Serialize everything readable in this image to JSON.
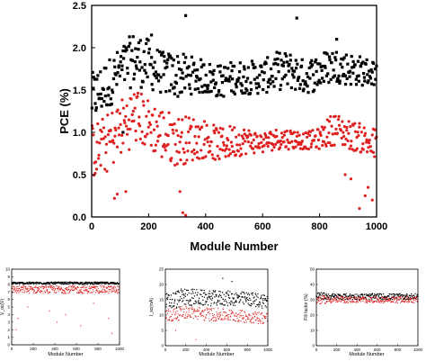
{
  "colors": {
    "series_black": "#000000",
    "series_red": "#e02020"
  },
  "chart_data": [
    {
      "id": "main",
      "type": "scatter",
      "xlabel": "Module Number",
      "ylabel": "PCE (%)",
      "xlim": [
        0,
        1000
      ],
      "ylim": [
        0.0,
        2.5
      ],
      "xticks": [
        "0",
        "200",
        "400",
        "600",
        "800",
        "1000"
      ],
      "yticks": [
        "0.0",
        "0.5",
        "1.0",
        "1.5",
        "2.0",
        "2.5"
      ],
      "grid": false,
      "series": [
        {
          "marker": "square",
          "color": "#000000",
          "profile_x": [
            0,
            50,
            100,
            150,
            200,
            250,
            300,
            350,
            400,
            450,
            500,
            550,
            600,
            650,
            700,
            750,
            800,
            850,
            900,
            950,
            1000
          ],
          "profile_hi": [
            1.7,
            1.85,
            2.0,
            2.2,
            2.1,
            1.95,
            1.95,
            1.9,
            1.85,
            1.8,
            1.85,
            1.85,
            1.85,
            1.95,
            1.95,
            1.85,
            1.95,
            2.0,
            1.95,
            1.9,
            1.85
          ],
          "profile_lo": [
            1.1,
            1.25,
            1.45,
            1.55,
            1.5,
            1.45,
            1.4,
            1.45,
            1.45,
            1.4,
            1.45,
            1.45,
            1.45,
            1.5,
            1.5,
            1.45,
            1.5,
            1.6,
            1.55,
            1.55,
            1.55
          ],
          "outliers": [
            [
              330,
              2.38
            ],
            [
              720,
              2.35
            ],
            [
              110,
              1.0
            ],
            [
              210,
              2.15
            ],
            [
              860,
              2.1
            ]
          ]
        },
        {
          "marker": "circle",
          "color": "#e02020",
          "profile_x": [
            0,
            50,
            100,
            150,
            200,
            250,
            300,
            350,
            400,
            450,
            500,
            550,
            600,
            650,
            700,
            750,
            800,
            850,
            900,
            950,
            1000
          ],
          "profile_hi": [
            1.1,
            1.2,
            1.4,
            1.55,
            1.4,
            1.3,
            1.2,
            1.2,
            1.15,
            1.05,
            1.1,
            1.05,
            1.0,
            1.05,
            1.05,
            1.0,
            1.05,
            1.25,
            1.15,
            1.1,
            1.05
          ],
          "profile_lo": [
            0.45,
            0.5,
            0.7,
            0.85,
            0.8,
            0.65,
            0.6,
            0.65,
            0.7,
            0.65,
            0.7,
            0.75,
            0.75,
            0.8,
            0.8,
            0.8,
            0.8,
            0.85,
            0.8,
            0.75,
            0.6
          ],
          "outliers": [
            [
              80,
              0.22
            ],
            [
              90,
              0.27
            ],
            [
              320,
              0.05
            ],
            [
              330,
              0.02
            ],
            [
              940,
              0.1
            ],
            [
              960,
              0.25
            ],
            [
              970,
              0.35
            ],
            [
              985,
              0.2
            ],
            [
              890,
              0.5
            ],
            [
              910,
              0.45
            ],
            [
              310,
              0.3
            ],
            [
              120,
              0.3
            ]
          ]
        }
      ]
    },
    {
      "id": "voc",
      "type": "scatter",
      "xlabel": "Module Number",
      "ylabel": "V_oc(V)",
      "xlim": [
        0,
        1000
      ],
      "ylim": [
        0,
        10
      ],
      "xticks": [
        "0",
        "200",
        "400",
        "600",
        "800",
        "1000"
      ],
      "yticks": [
        "0",
        "1",
        "2",
        "3",
        "4",
        "5",
        "6",
        "7",
        "8",
        "9",
        "10"
      ],
      "series": [
        {
          "marker": "square",
          "color": "#000000",
          "profile_x": [
            0,
            200,
            400,
            600,
            800,
            1000
          ],
          "profile_hi": [
            8.3,
            8.3,
            8.3,
            8.3,
            8.3,
            8.3
          ],
          "profile_lo": [
            8.0,
            8.0,
            8.0,
            8.0,
            8.0,
            8.0
          ],
          "outliers": []
        },
        {
          "marker": "circle",
          "color": "#e02020",
          "profile_x": [
            0,
            200,
            400,
            600,
            800,
            1000
          ],
          "profile_hi": [
            7.8,
            7.8,
            7.8,
            7.8,
            7.8,
            7.8
          ],
          "profile_lo": [
            6.8,
            6.8,
            6.8,
            6.8,
            6.8,
            6.8
          ],
          "outliers": [
            [
              40,
              2.0
            ],
            [
              60,
              3.5
            ],
            [
              150,
              5.0
            ],
            [
              350,
              4.5
            ],
            [
              420,
              3.0
            ],
            [
              500,
              4.0
            ],
            [
              640,
              2.5
            ],
            [
              760,
              5.5
            ],
            [
              900,
              3.5
            ],
            [
              930,
              1.5
            ]
          ]
        }
      ]
    },
    {
      "id": "isc",
      "type": "scatter",
      "xlabel": "Module Number",
      "ylabel": "I_sc(mA)",
      "xlim": [
        0,
        1000
      ],
      "ylim": [
        0,
        25
      ],
      "xticks": [
        "0",
        "200",
        "400",
        "600",
        "800",
        "1000"
      ],
      "yticks": [
        "0",
        "5",
        "10",
        "15",
        "20",
        "25"
      ],
      "series": [
        {
          "marker": "square",
          "color": "#000000",
          "profile_x": [
            0,
            200,
            400,
            600,
            800,
            1000
          ],
          "profile_hi": [
            17,
            19,
            18,
            18,
            17.5,
            17
          ],
          "profile_lo": [
            11,
            13,
            13,
            13,
            13,
            12
          ],
          "outliers": [
            [
              560,
              22
            ],
            [
              650,
              21
            ]
          ]
        },
        {
          "marker": "circle",
          "color": "#e02020",
          "profile_x": [
            0,
            200,
            400,
            600,
            800,
            1000
          ],
          "profile_hi": [
            12,
            13,
            12.5,
            12,
            11.5,
            11
          ],
          "profile_lo": [
            7,
            9,
            8,
            8,
            7.5,
            7
          ],
          "outliers": [
            [
              300,
              2
            ],
            [
              100,
              5
            ]
          ]
        }
      ]
    },
    {
      "id": "ff",
      "type": "scatter",
      "xlabel": "Module Number",
      "ylabel": "Fill factor (%)",
      "xlim": [
        0,
        1000
      ],
      "ylim": [
        0,
        50
      ],
      "xticks": [
        "0",
        "200",
        "400",
        "600",
        "800",
        "1000"
      ],
      "yticks": [
        "0",
        "10",
        "20",
        "30",
        "40",
        "50"
      ],
      "series": [
        {
          "marker": "square",
          "color": "#000000",
          "profile_x": [
            0,
            200,
            400,
            600,
            800,
            1000
          ],
          "profile_hi": [
            35,
            34,
            34,
            34,
            34,
            34
          ],
          "profile_lo": [
            30,
            30,
            30,
            30,
            30,
            30
          ],
          "outliers": []
        },
        {
          "marker": "circle",
          "color": "#e02020",
          "profile_x": [
            0,
            200,
            400,
            600,
            800,
            1000
          ],
          "profile_hi": [
            33,
            32,
            32,
            32,
            32,
            32
          ],
          "profile_lo": [
            27,
            28,
            28,
            28,
            28,
            28
          ],
          "outliers": []
        }
      ]
    }
  ]
}
